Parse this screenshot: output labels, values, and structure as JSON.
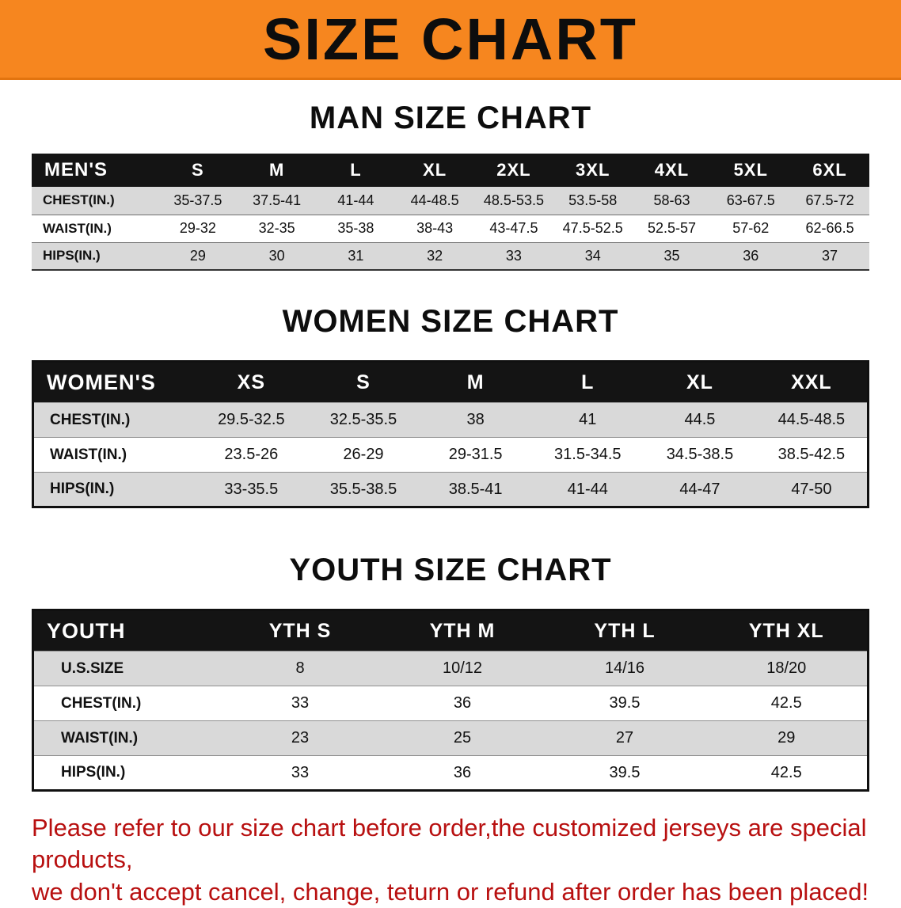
{
  "banner": {
    "title": "SIZE CHART"
  },
  "colors": {
    "banner_bg": "#f6861f",
    "table_header_bg": "#141414",
    "row_alt_bg": "#d9d9d9",
    "footer_text": "#b81010"
  },
  "men": {
    "heading": "MAN SIZE CHART",
    "header": [
      "MEN'S",
      "S",
      "M",
      "L",
      "XL",
      "2XL",
      "3XL",
      "4XL",
      "5XL",
      "6XL"
    ],
    "rows": [
      [
        "CHEST(IN.)",
        "35-37.5",
        "37.5-41",
        "41-44",
        "44-48.5",
        "48.5-53.5",
        "53.5-58",
        "58-63",
        "63-67.5",
        "67.5-72"
      ],
      [
        "WAIST(IN.)",
        "29-32",
        "32-35",
        "35-38",
        "38-43",
        "43-47.5",
        "47.5-52.5",
        "52.5-57",
        "57-62",
        "62-66.5"
      ],
      [
        "HIPS(IN.)",
        "29",
        "30",
        "31",
        "32",
        "33",
        "34",
        "35",
        "36",
        "37"
      ]
    ]
  },
  "women": {
    "heading": "WOMEN SIZE CHART",
    "header": [
      "WOMEN'S",
      "XS",
      "S",
      "M",
      "L",
      "XL",
      "XXL"
    ],
    "rows": [
      [
        "CHEST(IN.)",
        "29.5-32.5",
        "32.5-35.5",
        "38",
        "41",
        "44.5",
        "44.5-48.5"
      ],
      [
        "WAIST(IN.)",
        "23.5-26",
        "26-29",
        "29-31.5",
        "31.5-34.5",
        "34.5-38.5",
        "38.5-42.5"
      ],
      [
        "HIPS(IN.)",
        "33-35.5",
        "35.5-38.5",
        "38.5-41",
        "41-44",
        "44-47",
        "47-50"
      ]
    ]
  },
  "youth": {
    "heading": "YOUTH SIZE CHART",
    "header": [
      "YOUTH",
      "YTH S",
      "YTH M",
      "YTH L",
      "YTH XL"
    ],
    "rows": [
      [
        "U.S.SIZE",
        "8",
        "10/12",
        "14/16",
        "18/20"
      ],
      [
        "CHEST(IN.)",
        "33",
        "36",
        "39.5",
        "42.5"
      ],
      [
        "WAIST(IN.)",
        "23",
        "25",
        "27",
        "29"
      ],
      [
        "HIPS(IN.)",
        "33",
        "36",
        "39.5",
        "42.5"
      ]
    ]
  },
  "footer": {
    "line1": "Please refer to our size chart before order,the customized jerseys are special products,",
    "line2": "we don't accept cancel, change, teturn or refund after order has been placed!"
  }
}
